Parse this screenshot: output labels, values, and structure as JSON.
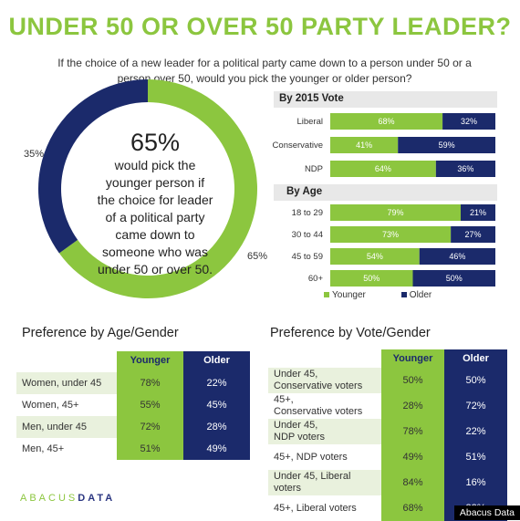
{
  "title": "UNDER 50 OR OVER 50 PARTY LEADER?",
  "subtitle_line1": "If the choice of a new leader for a political party came down to a person under 50 or a",
  "subtitle_line2": "person over 50, would you pick the younger or older person?",
  "colors": {
    "green": "#8cc63f",
    "navy": "#1b2a6b",
    "light_row": "#e9f1dd",
    "white_row": "#ffffff"
  },
  "donut": {
    "younger": 65,
    "older": 35,
    "big_label": "65%",
    "center_lines": [
      "would pick the",
      "younger person if",
      "the choice for leader",
      "of a political party",
      "came down to",
      "someone who was",
      "under 50 or over 50."
    ],
    "older_label": "35%",
    "younger_label": "65%"
  },
  "chart_data": [
    {
      "type": "bar",
      "title": "By 2015 Vote",
      "categories": [
        "Liberal",
        "Conservative",
        "NDP"
      ],
      "series": [
        {
          "name": "Younger",
          "values": [
            68,
            41,
            64
          ]
        },
        {
          "name": "Older",
          "values": [
            32,
            59,
            36
          ]
        }
      ]
    },
    {
      "type": "bar",
      "title": "By Age",
      "categories": [
        "18 to 29",
        "30 to 44",
        "45 to 59",
        "60+"
      ],
      "series": [
        {
          "name": "Younger",
          "values": [
            79,
            73,
            54,
            50
          ]
        },
        {
          "name": "Older",
          "values": [
            21,
            27,
            46,
            50
          ]
        }
      ]
    },
    {
      "type": "table",
      "title": "Preference by Age/Gender",
      "columns": [
        "Younger",
        "Older"
      ],
      "rows": [
        {
          "label": "Women, under 45",
          "younger": "78%",
          "older": "22%"
        },
        {
          "label": "Women, 45+",
          "younger": "55%",
          "older": "45%"
        },
        {
          "label": "Men, under 45",
          "younger": "72%",
          "older": "28%"
        },
        {
          "label": "Men, 45+",
          "younger": "51%",
          "older": "49%"
        }
      ]
    },
    {
      "type": "table",
      "title": "Preference by Vote/Gender",
      "columns": [
        "Younger",
        "Older"
      ],
      "rows": [
        {
          "label1": "Under 45,",
          "label2": "Conservative voters",
          "younger": "50%",
          "older": "50%"
        },
        {
          "label1": "45+,",
          "label2": "Conservative voters",
          "younger": "28%",
          "older": "72%"
        },
        {
          "label1": "Under 45,",
          "label2": "NDP voters",
          "younger": "78%",
          "older": "22%"
        },
        {
          "label1": "45+, NDP voters",
          "label2": "",
          "younger": "49%",
          "older": "51%"
        },
        {
          "label1": "Under 45, Liberal",
          "label2": "voters",
          "younger": "84%",
          "older": "16%"
        },
        {
          "label1": "45+, Liberal voters",
          "label2": "",
          "younger": "68%",
          "older": "32%"
        }
      ]
    }
  ],
  "legend": {
    "younger": "Younger",
    "older": "Older"
  },
  "logo_text_a": "ABACUS",
  "logo_text_b": "DATA",
  "credit": "Abacus Data"
}
